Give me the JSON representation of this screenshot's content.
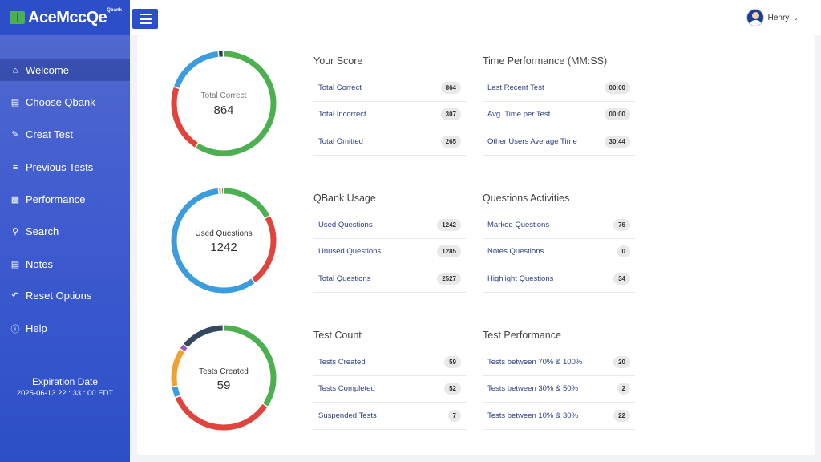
{
  "brand": {
    "name": "AceMccQe",
    "sup": "Qbank"
  },
  "user": {
    "name": "Henry"
  },
  "sidebar": {
    "items": [
      {
        "label": "Welcome",
        "icon": "home-icon"
      },
      {
        "label": "Choose Qbank",
        "icon": "book-icon"
      },
      {
        "label": "Creat Test",
        "icon": "edit-icon"
      },
      {
        "label": "Previous Tests",
        "icon": "list-icon"
      },
      {
        "label": "Performance",
        "icon": "bar-chart-icon"
      },
      {
        "label": "Search",
        "icon": "search-icon"
      },
      {
        "label": "Notes",
        "icon": "notes-icon"
      },
      {
        "label": "Reset Options",
        "icon": "reset-icon"
      },
      {
        "label": "Help",
        "icon": "help-icon"
      }
    ],
    "expiration": {
      "label": "Expiration Date",
      "value": "2025-06-13 22 : 33 : 00 EDT"
    }
  },
  "donuts": [
    {
      "label": "Total Correct",
      "value": "864",
      "segments": [
        {
          "value": 864,
          "color": "#4caf50"
        },
        {
          "value": 307,
          "color": "#e0443d"
        },
        {
          "value": 265,
          "color": "#3b9ddd"
        },
        {
          "value": 22,
          "color": "#2f3e4e"
        }
      ]
    },
    {
      "label": "Used Questions",
      "value": "1242",
      "segments": [
        {
          "value": 380,
          "color": "#4caf50"
        },
        {
          "value": 500,
          "color": "#e0443d"
        },
        {
          "value": 1285,
          "color": "#3b9ddd"
        },
        {
          "value": 20,
          "color": "#f0a030"
        },
        {
          "value": 12,
          "color": "#2f3e4e"
        }
      ]
    },
    {
      "label": "Tests Created",
      "value": "59",
      "segments": [
        {
          "value": 20,
          "color": "#4caf50"
        },
        {
          "value": 20,
          "color": "#e0443d"
        },
        {
          "value": 2,
          "color": "#3b9ddd"
        },
        {
          "value": 7,
          "color": "#f0a030"
        },
        {
          "value": 1,
          "color": "#9c5ab4"
        },
        {
          "value": 8,
          "color": "#34495e"
        }
      ]
    }
  ],
  "panels": [
    {
      "title": "Your Score",
      "rows": [
        {
          "label": "Total Correct",
          "value": "864"
        },
        {
          "label": "Total Incorrect",
          "value": "307"
        },
        {
          "label": "Total Omitted",
          "value": "265"
        }
      ]
    },
    {
      "title": "Time Performance (MM:SS)",
      "rows": [
        {
          "label": "Last Recent Test",
          "value": "00:00"
        },
        {
          "label": "Avg. Time per Test",
          "value": "00:00"
        },
        {
          "label": "Other Users Average Time",
          "value": "30:44"
        }
      ]
    },
    {
      "title": "QBank Usage",
      "rows": [
        {
          "label": "Used Questions",
          "value": "1242"
        },
        {
          "label": "Unused Questions",
          "value": "1285"
        },
        {
          "label": "Total Questions",
          "value": "2527"
        }
      ]
    },
    {
      "title": "Questions Activities",
      "rows": [
        {
          "label": "Marked Questions",
          "value": "76"
        },
        {
          "label": "Notes Questions",
          "value": "0"
        },
        {
          "label": "Highlight Questions",
          "value": "34"
        }
      ]
    },
    {
      "title": "Test Count",
      "rows": [
        {
          "label": "Tests Created",
          "value": "59"
        },
        {
          "label": "Tests Completed",
          "value": "52"
        },
        {
          "label": "Suspended Tests",
          "value": "7"
        }
      ]
    },
    {
      "title": "Test Performance",
      "rows": [
        {
          "label": "Tests between 70% & 100%",
          "value": "20"
        },
        {
          "label": "Tests between 30% & 50%",
          "value": "2"
        },
        {
          "label": "Tests between 10% & 30%",
          "value": "22"
        }
      ]
    }
  ]
}
